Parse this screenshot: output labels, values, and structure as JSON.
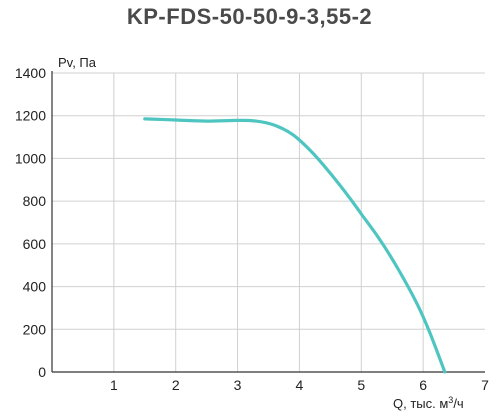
{
  "chart_data": {
    "type": "line",
    "title": "KP-FDS-50-50-9-3,55-2",
    "ylabel": "Pv, Па",
    "xlabel_main": "Q, тыс. м",
    "xlabel_sup": "3",
    "xlabel_tail": "/ч",
    "xlim": [
      0,
      7
    ],
    "ylim": [
      0,
      1400
    ],
    "x_ticks": [
      1,
      2,
      3,
      4,
      5,
      6,
      7
    ],
    "y_ticks": [
      0,
      200,
      400,
      600,
      800,
      1000,
      1200,
      1400
    ],
    "grid": true,
    "series": [
      {
        "color": "#4ec5c1",
        "x": [
          1.5,
          2.0,
          2.5,
          3.0,
          3.3,
          3.6,
          3.9,
          4.2,
          4.5,
          4.8,
          5.0,
          5.3,
          5.6,
          5.9,
          6.1,
          6.35
        ],
        "y": [
          1185,
          1180,
          1175,
          1178,
          1175,
          1155,
          1110,
          1030,
          930,
          820,
          740,
          620,
          480,
          320,
          190,
          0
        ]
      }
    ]
  }
}
